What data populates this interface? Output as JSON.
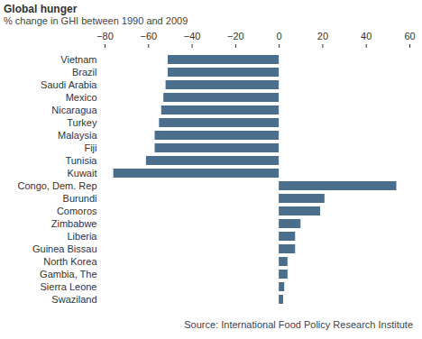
{
  "chart_data": {
    "type": "bar",
    "orientation": "horizontal",
    "title": "Global hunger",
    "subtitle": "% change in GHI between 1990 and 2009",
    "source": "Source: International Food Policy Research Institute",
    "categories": [
      "Vietnam",
      "Brazil",
      "Saudi Arabia",
      "Mexico",
      "Nicaragua",
      "Turkey",
      "Malaysia",
      "Fiji",
      "Tunisia",
      "Kuwait",
      "Congo, Dem. Rep",
      "Burundi",
      "Comoros",
      "Zimbabwe",
      "Liberia",
      "Guinea Bissau",
      "North Korea",
      "Gambia, The",
      "Sierra Leone",
      "Swaziland"
    ],
    "values": [
      -51,
      -51,
      -52,
      -53,
      -54,
      -55,
      -57,
      -57,
      -61,
      -76,
      54,
      21,
      19,
      10,
      7.5,
      7.5,
      4,
      4,
      2.5,
      2
    ],
    "color": "#4a6e8c",
    "xlim": [
      -80,
      60
    ],
    "xticks": [
      -80,
      -60,
      -40,
      -20,
      0,
      20,
      40,
      60
    ],
    "grid": false
  }
}
